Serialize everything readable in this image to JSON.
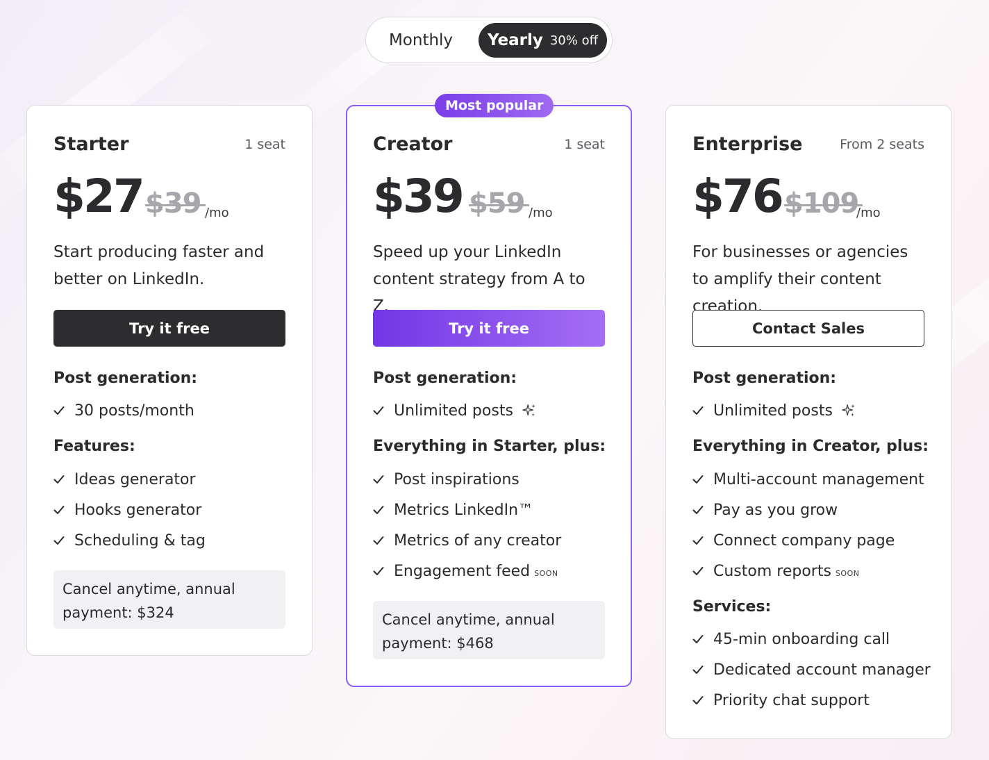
{
  "billing_toggle": {
    "monthly_label": "Monthly",
    "yearly_label": "Yearly",
    "yearly_discount": "30% off",
    "selected": "Yearly"
  },
  "colors": {
    "accent": "#8b5cf6",
    "dark": "#2d2d2f"
  },
  "plans": [
    {
      "name": "Starter",
      "seats": "1 seat",
      "price": "$27",
      "old_price": "$39",
      "per": "/mo",
      "description": "Start producing faster and better on LinkedIn.",
      "cta": "Try it free",
      "sections": [
        {
          "title": "Post generation:",
          "items": [
            {
              "label": "30 posts/month"
            }
          ]
        },
        {
          "title": "Features:",
          "items": [
            {
              "label": "Ideas generator"
            },
            {
              "label": "Hooks generator"
            },
            {
              "label": "Scheduling & tag"
            }
          ]
        }
      ],
      "note": "Cancel anytime, annual payment: $324"
    },
    {
      "name": "Creator",
      "badge": "Most popular",
      "seats": "1 seat",
      "price": "$39",
      "old_price": "$59",
      "per": "/mo",
      "description": "Speed up your LinkedIn content strategy from A to Z.",
      "cta": "Try it free",
      "sections": [
        {
          "title": "Post generation:",
          "items": [
            {
              "label": "Unlimited posts",
              "icon": "sparkle-icon"
            }
          ]
        },
        {
          "title": "Everything in Starter, plus:",
          "items": [
            {
              "label": "Post inspirations"
            },
            {
              "label": "Metrics LinkedIn™"
            },
            {
              "label": "Metrics of any creator"
            },
            {
              "label": "Engagement feed",
              "tag": "SOON"
            }
          ]
        }
      ],
      "note": "Cancel anytime, annual payment: $468"
    },
    {
      "name": "Enterprise",
      "seats": "From 2 seats",
      "price": "$76",
      "old_price": "$109",
      "per": "/mo",
      "description": "For businesses or agencies to amplify their content creation.",
      "cta": "Contact Sales",
      "sections": [
        {
          "title": "Post generation:",
          "items": [
            {
              "label": "Unlimited posts",
              "icon": "sparkle-icon"
            }
          ]
        },
        {
          "title": "Everything in Creator, plus:",
          "items": [
            {
              "label": "Multi-account management"
            },
            {
              "label": "Pay as you grow"
            },
            {
              "label": "Connect company page"
            },
            {
              "label": "Custom reports",
              "tag": "SOON"
            }
          ]
        },
        {
          "title": "Services:",
          "items": [
            {
              "label": "45-min onboarding call"
            },
            {
              "label": "Dedicated account manager"
            },
            {
              "label": "Priority chat support"
            }
          ]
        }
      ]
    }
  ]
}
